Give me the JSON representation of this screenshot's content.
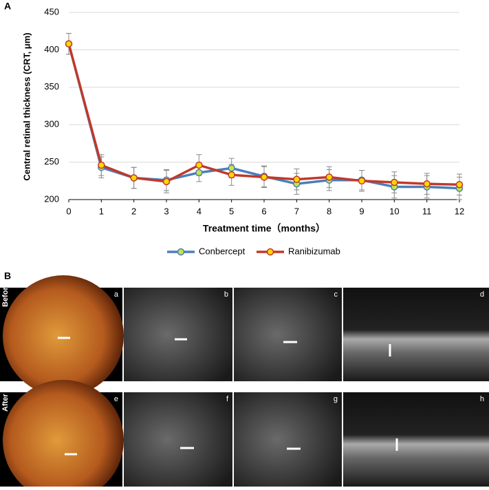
{
  "chart_data": {
    "type": "line",
    "y_label": "Central retinal thickness (CRT, μm)",
    "x_label": "Treatment time（months）",
    "x": [
      0,
      1,
      2,
      3,
      4,
      5,
      6,
      7,
      8,
      9,
      10,
      11,
      12
    ],
    "xlim": [
      0,
      12
    ],
    "xticks": [
      0,
      1,
      2,
      3,
      4,
      5,
      6,
      7,
      8,
      9,
      10,
      11,
      12
    ],
    "ylim": [
      200,
      450
    ],
    "yticks": [
      200,
      250,
      300,
      350,
      400,
      450
    ],
    "grid": true,
    "legend": "bottom",
    "series": [
      {
        "name": "Conbercept",
        "color": "#4a7ebb",
        "marker_color": "#c6e24a",
        "values": [
          408,
          243,
          229,
          226,
          236,
          242,
          231,
          221,
          226,
          226,
          217,
          217,
          215
        ],
        "errors": [
          14,
          14,
          14,
          14,
          12,
          13,
          14,
          14,
          14,
          13,
          15,
          15,
          15
        ]
      },
      {
        "name": "Ranibizumab",
        "color": "#c0392b",
        "marker_color": "#ffd700",
        "values": [
          408,
          246,
          229,
          224,
          246,
          233,
          230,
          227,
          230,
          225,
          223,
          221,
          220
        ],
        "errors": [
          14,
          14,
          14,
          15,
          14,
          14,
          14,
          14,
          14,
          14,
          14,
          14,
          14
        ]
      }
    ]
  },
  "figure": {
    "panel_labels": [
      "A",
      "B"
    ],
    "row_labels": [
      "Before",
      "After"
    ],
    "image_labels": [
      "a",
      "b",
      "c",
      "d",
      "e",
      "f",
      "g",
      "h"
    ]
  }
}
